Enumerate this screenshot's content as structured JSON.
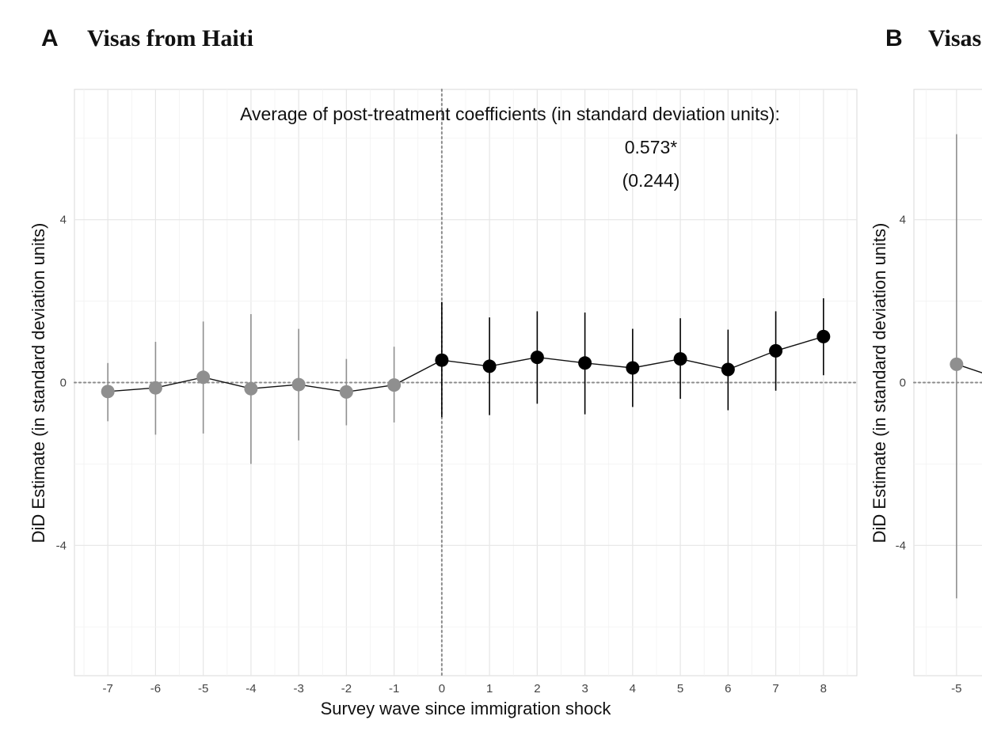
{
  "chart_data": [
    {
      "type": "line",
      "panel": "A",
      "title": "Visas from Haiti",
      "xlabel": "Survey wave since immigration shock",
      "ylabel": "DiD Estimate (in standard deviation units)",
      "xlim": [
        -7.7,
        8.7
      ],
      "ylim": [
        -7.2,
        7.2
      ],
      "xticks": [
        -7,
        -6,
        -5,
        -4,
        -3,
        -2,
        -1,
        0,
        1,
        2,
        3,
        4,
        5,
        6,
        7,
        8
      ],
      "yticks": [
        -4,
        0,
        4
      ],
      "grid": true,
      "vertical_reference_line_x": 0,
      "horizontal_reference_line_y": 0,
      "annotation": {
        "line1": "Average of post-treatment coefficients (in standard deviation units):",
        "line2": "0.573*",
        "line3": "(0.244)"
      },
      "series": [
        {
          "group": "pre-treatment",
          "color": "#8f8f8f",
          "x": [
            -7,
            -6,
            -5,
            -4,
            -3,
            -2,
            -1
          ],
          "y": [
            -0.22,
            -0.13,
            0.13,
            -0.15,
            -0.05,
            -0.23,
            -0.06
          ],
          "ci_low": [
            -0.95,
            -1.28,
            -1.25,
            -2.0,
            -1.42,
            -1.05,
            -0.98
          ],
          "ci_high": [
            0.48,
            1.0,
            1.5,
            1.68,
            1.32,
            0.58,
            0.88
          ]
        },
        {
          "group": "post-treatment",
          "color": "#000000",
          "x": [
            0,
            1,
            2,
            3,
            4,
            5,
            6,
            7,
            8
          ],
          "y": [
            0.55,
            0.4,
            0.62,
            0.48,
            0.36,
            0.58,
            0.32,
            0.78,
            1.13
          ],
          "ci_low": [
            -0.85,
            -0.8,
            -0.52,
            -0.78,
            -0.6,
            -0.4,
            -0.68,
            -0.2,
            0.18
          ],
          "ci_high": [
            1.98,
            1.6,
            1.75,
            1.72,
            1.32,
            1.58,
            1.3,
            1.75,
            2.07
          ]
        }
      ]
    },
    {
      "type": "line",
      "panel": "B",
      "title": "Visas",
      "xlabel": "",
      "ylabel": "DiD Estimate (in standard deviation units)",
      "xlim": [
        -5.7,
        -4.4
      ],
      "ylim": [
        -7.2,
        7.2
      ],
      "xticks": [
        -5
      ],
      "yticks": [
        -4,
        0,
        4
      ],
      "grid": true,
      "horizontal_reference_line_y": 0,
      "series": [
        {
          "group": "pre-treatment",
          "color": "#8f8f8f",
          "x": [
            -5,
            -4.4
          ],
          "y": [
            0.45,
            0.15
          ],
          "ci_low": [
            -5.3
          ],
          "ci_high": [
            6.1
          ]
        }
      ]
    }
  ]
}
